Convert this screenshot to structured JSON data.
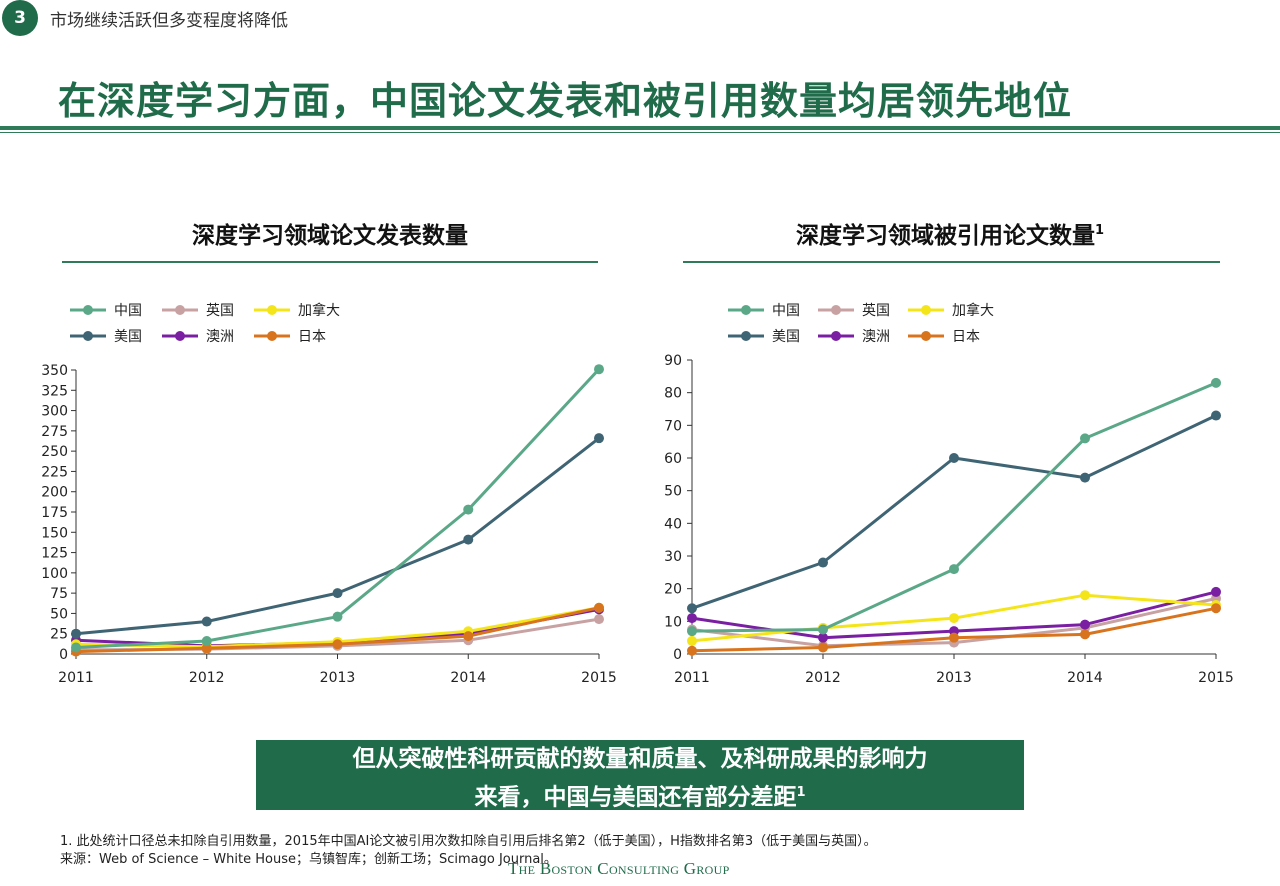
{
  "header": {
    "section_number": "3",
    "section_title": "市场继续活跃但多变程度将降低",
    "main_title": "在深度学习方面，中国论文发表和被引用数量均居领先地位"
  },
  "callout": {
    "line1": "但从突破性科研贡献的数量和质量、及科研成果的影响力",
    "line2": "来看，中国与美国还有部分差距",
    "sup": "1"
  },
  "footnote": {
    "note1": "1. 此处统计口径总未扣除自引用数量，2015年中国AI论文被引用次数扣除自引用后排名第2（低于美国），H指数排名第3（低于美国与英国）。",
    "source": "来源：Web of Science – White House；乌镇智库；创新工场；Scimago Journal。"
  },
  "logo": "The Boston Consulting Group",
  "colors": {
    "brand_green": "#1f6b4a",
    "中国": "#5aa888",
    "美国": "#3f6474",
    "英国": "#c8a2a2",
    "澳洲": "#7a1fa2",
    "加拿大": "#f4e51a",
    "日本": "#d8741e"
  },
  "chart_data": [
    {
      "type": "line",
      "title": "深度学习领域论文发表数量",
      "title_sup": "",
      "x": [
        "2011",
        "2012",
        "2013",
        "2014",
        "2015"
      ],
      "ylim": [
        0,
        350
      ],
      "yticks": [
        0,
        25,
        50,
        75,
        100,
        125,
        150,
        175,
        200,
        225,
        250,
        275,
        300,
        325,
        350
      ],
      "grid": false,
      "legend_position": "top-left",
      "series": [
        {
          "name": "中国",
          "color": "#5aa888",
          "values": [
            8,
            16,
            46,
            178,
            351
          ]
        },
        {
          "name": "美国",
          "color": "#3f6474",
          "values": [
            25,
            40,
            75,
            141,
            266
          ]
        },
        {
          "name": "英国",
          "color": "#c8a2a2",
          "values": [
            5,
            6,
            10,
            17,
            43
          ]
        },
        {
          "name": "澳洲",
          "color": "#7a1fa2",
          "values": [
            17,
            10,
            14,
            25,
            55
          ]
        },
        {
          "name": "加拿大",
          "color": "#f4e51a",
          "values": [
            12,
            9,
            15,
            28,
            57
          ]
        },
        {
          "name": "日本",
          "color": "#d8741e",
          "values": [
            3,
            7,
            12,
            22,
            57
          ]
        }
      ]
    },
    {
      "type": "line",
      "title": "深度学习领域被引用论文数量",
      "title_sup": "1",
      "x": [
        "2011",
        "2012",
        "2013",
        "2014",
        "2015"
      ],
      "ylim": [
        0,
        90
      ],
      "yticks": [
        0,
        10,
        20,
        30,
        40,
        50,
        60,
        70,
        80,
        90
      ],
      "grid": false,
      "legend_position": "top-left",
      "series": [
        {
          "name": "中国",
          "color": "#5aa888",
          "values": [
            7,
            7.5,
            26,
            66,
            83
          ]
        },
        {
          "name": "美国",
          "color": "#3f6474",
          "values": [
            14,
            28,
            60,
            54,
            73
          ]
        },
        {
          "name": "英国",
          "color": "#c8a2a2",
          "values": [
            7.5,
            2.5,
            3.5,
            8,
            17
          ]
        },
        {
          "name": "澳洲",
          "color": "#7a1fa2",
          "values": [
            11,
            5,
            7,
            9,
            19
          ]
        },
        {
          "name": "加拿大",
          "color": "#f4e51a",
          "values": [
            4,
            8,
            11,
            18,
            15
          ]
        },
        {
          "name": "日本",
          "color": "#d8741e",
          "values": [
            1,
            2,
            5,
            6,
            14
          ]
        }
      ]
    }
  ]
}
